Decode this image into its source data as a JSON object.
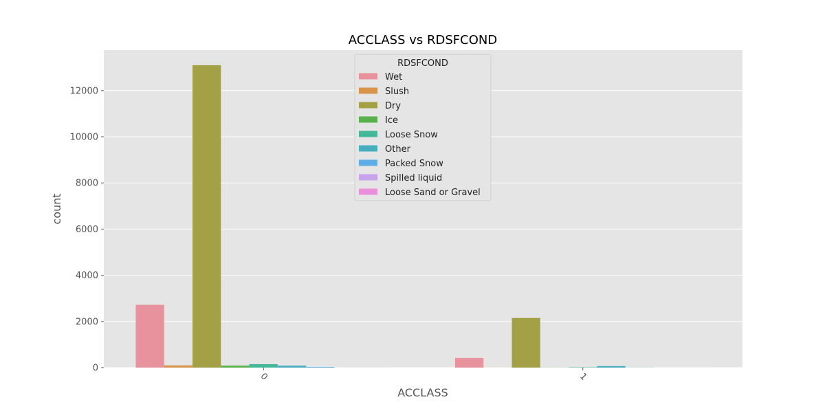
{
  "chart_data": {
    "type": "bar",
    "title": "ACCLASS vs RDSFCOND",
    "xlabel": "ACCLASS",
    "ylabel": "count",
    "categories": [
      "0",
      "1"
    ],
    "ylim": [
      0,
      13750
    ],
    "yticks": [
      0,
      2000,
      4000,
      6000,
      8000,
      10000,
      12000
    ],
    "grid": true,
    "legend": {
      "title": "RDSFCOND",
      "position": "top-center"
    },
    "series": [
      {
        "name": "Wet",
        "color": "#e8929d",
        "values": [
          2720,
          420
        ]
      },
      {
        "name": "Slush",
        "color": "#d9944c",
        "values": [
          95,
          3
        ]
      },
      {
        "name": "Dry",
        "color": "#a3a046",
        "values": [
          13100,
          2150
        ]
      },
      {
        "name": "Ice",
        "color": "#58b14a",
        "values": [
          85,
          5
        ]
      },
      {
        "name": "Loose Snow",
        "color": "#45b89a",
        "values": [
          150,
          15
        ]
      },
      {
        "name": "Other",
        "color": "#47aebf",
        "values": [
          85,
          65
        ]
      },
      {
        "name": "Packed Snow",
        "color": "#5daee7",
        "values": [
          30,
          5
        ]
      },
      {
        "name": "Spilled liquid",
        "color": "#c7a3ec",
        "values": [
          3,
          1
        ]
      },
      {
        "name": "Loose Sand or Gravel",
        "color": "#ea8fd9",
        "values": [
          3,
          1
        ]
      }
    ]
  }
}
